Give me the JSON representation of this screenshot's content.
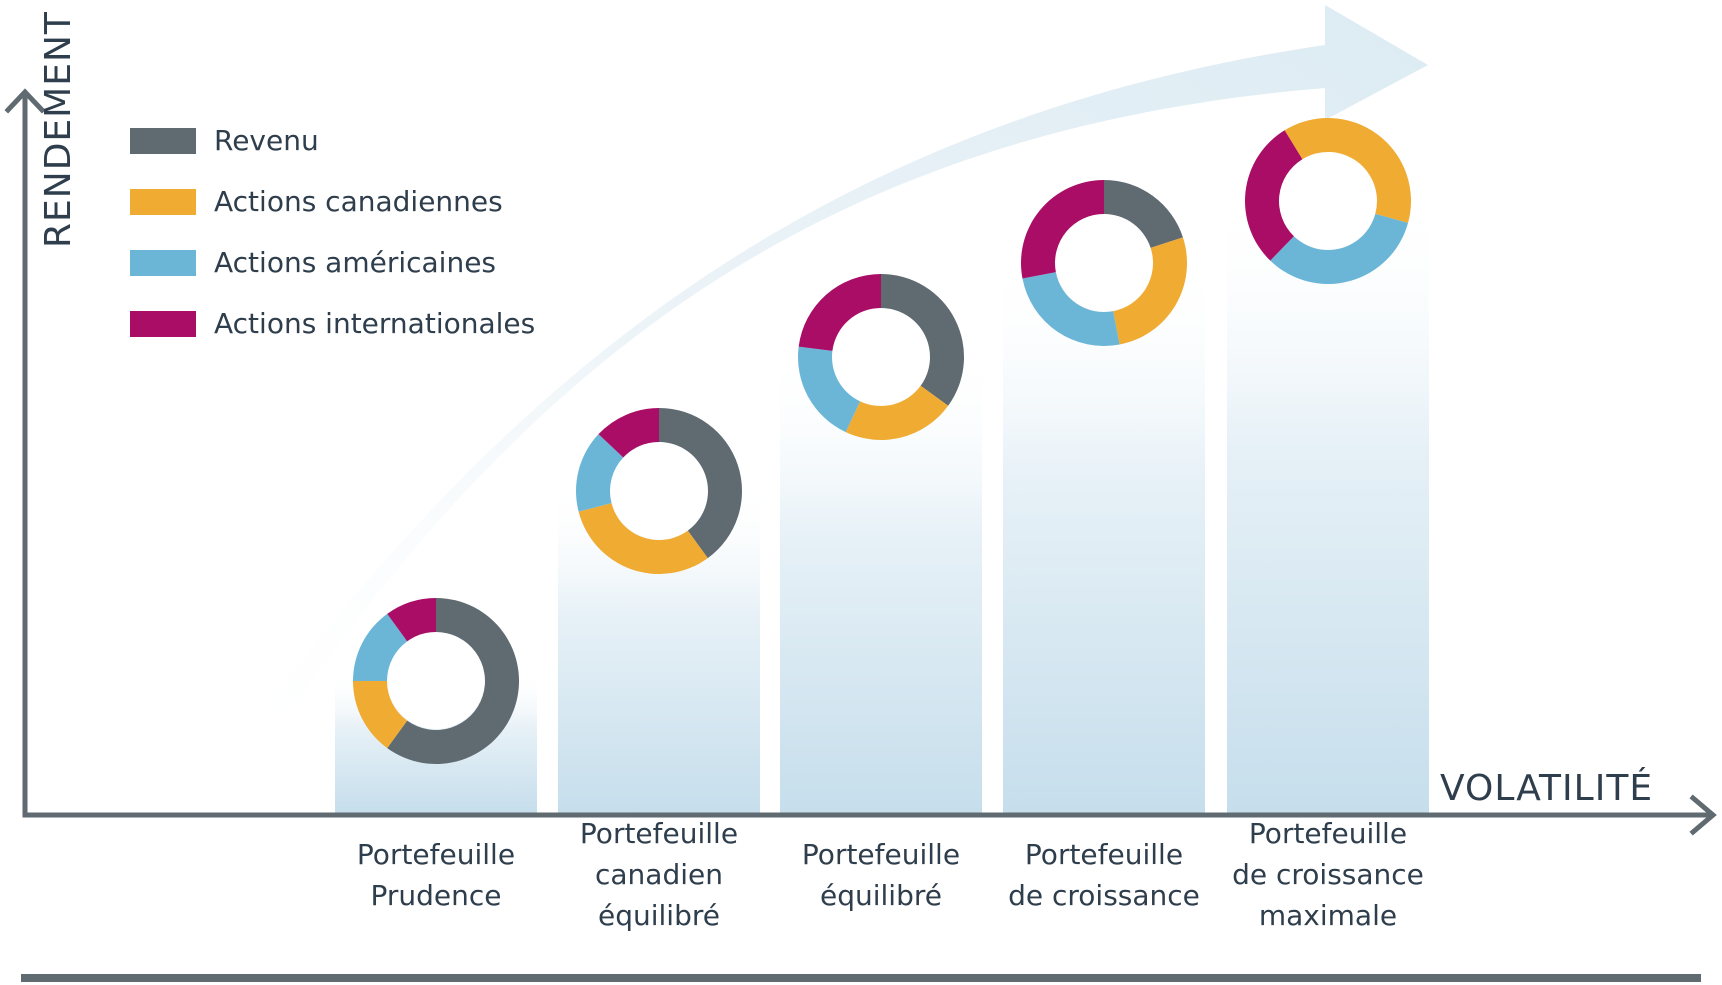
{
  "chart_data": {
    "type": "donut",
    "x_axis_label": "VOLATILITÉ",
    "y_axis_label": "RENDEMENT",
    "series": [
      {
        "name": "Revenu",
        "color": "#5f6a71"
      },
      {
        "name": "Actions canadiennes",
        "color": "#f0ab32"
      },
      {
        "name": "Actions américaines",
        "color": "#6bb6d7"
      },
      {
        "name": "Actions internationales",
        "color": "#a90d66"
      }
    ],
    "portfolios": [
      {
        "label": [
          "Portefeuille",
          "Prudence"
        ],
        "allocations": [
          0.6,
          0.15,
          0.15,
          0.1
        ]
      },
      {
        "label": [
          "Portefeuille",
          "canadien",
          "équilibré"
        ],
        "allocations": [
          0.4,
          0.31,
          0.16,
          0.13
        ]
      },
      {
        "label": [
          "Portefeuille",
          "équilibré"
        ],
        "allocations": [
          0.35,
          0.22,
          0.2,
          0.23
        ]
      },
      {
        "label": [
          "Portefeuille",
          "de croissance"
        ],
        "allocations": [
          0.2,
          0.27,
          0.25,
          0.28
        ]
      },
      {
        "label": [
          "Portefeuille",
          "de croissance",
          "maximale"
        ],
        "allocations": [
          0,
          0.38,
          0.33,
          0.29
        ]
      }
    ],
    "trend": "Rendement croît avec la volatilité"
  }
}
